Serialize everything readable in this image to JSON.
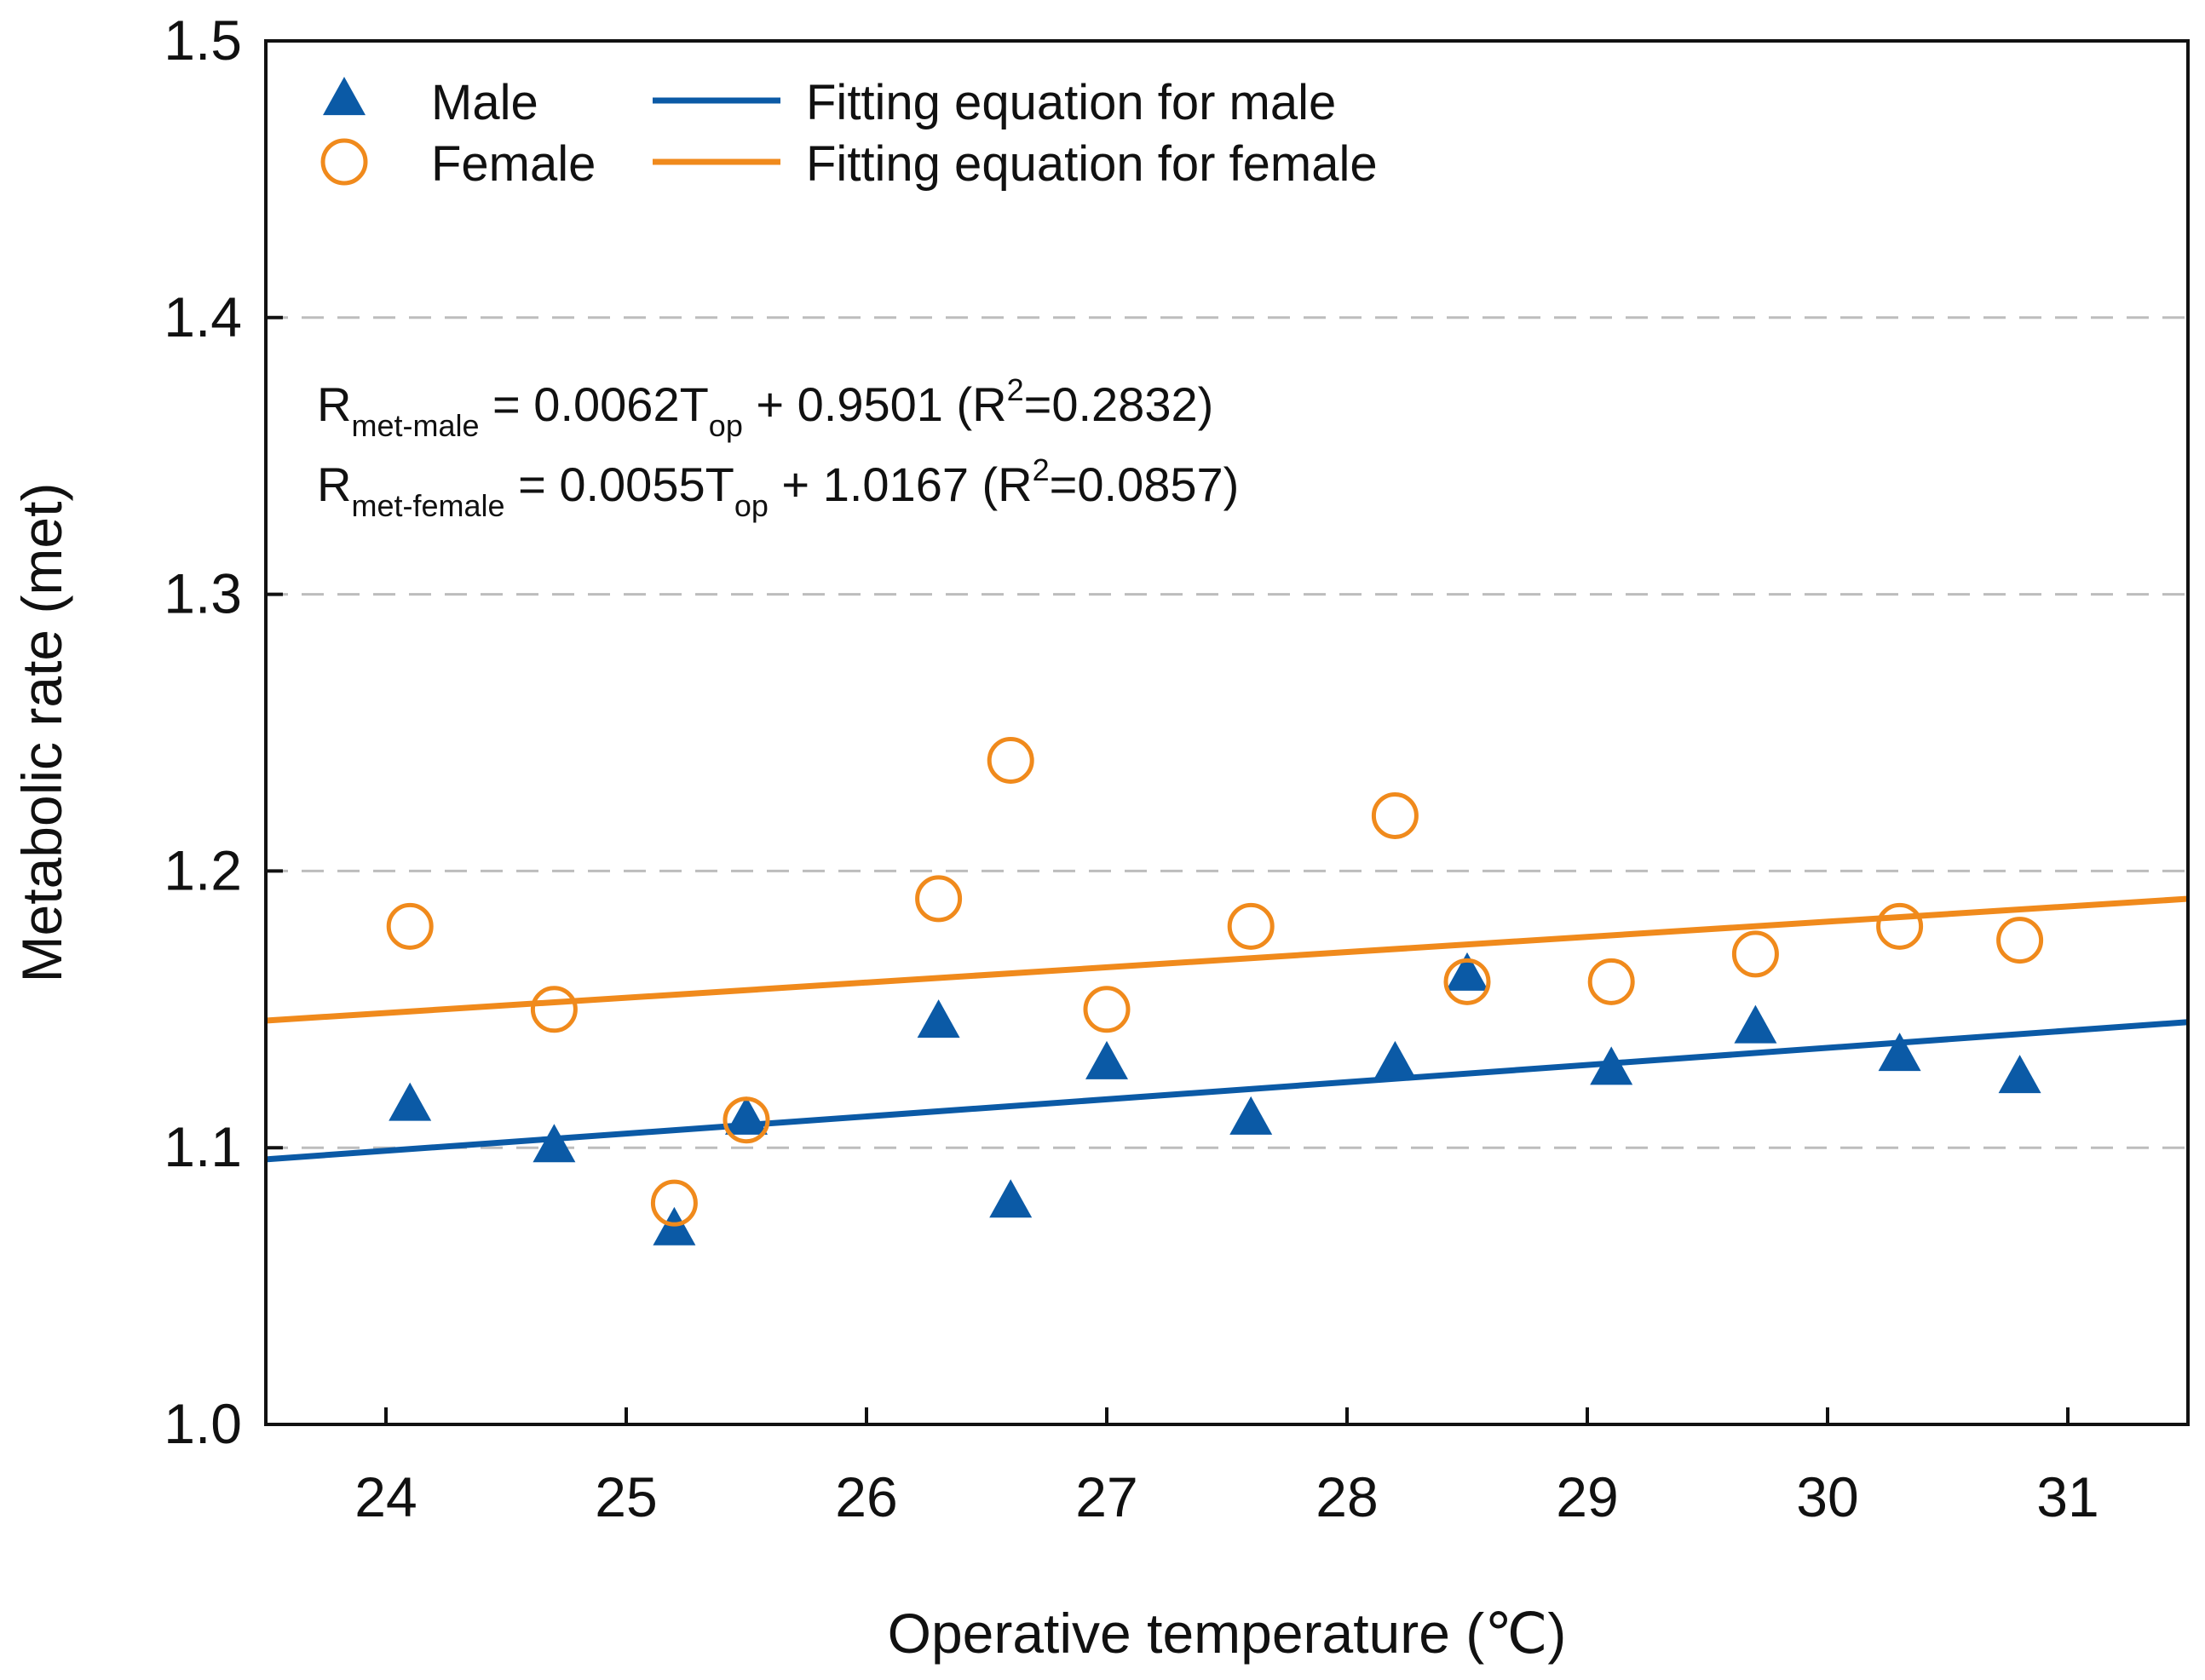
{
  "chart_data": {
    "type": "scatter",
    "xlabel": "Operative temperature (℃)",
    "ylabel": "Metabolic rate (met)",
    "xlim": [
      23.5,
      31.5
    ],
    "ylim": [
      1.0,
      1.5
    ],
    "xticks": [
      24,
      25,
      26,
      27,
      28,
      29,
      30,
      31
    ],
    "yticks": [
      1.0,
      1.1,
      1.2,
      1.3,
      1.4,
      1.5
    ],
    "ytick_labels": [
      "1.0",
      "1.1",
      "1.2",
      "1.3",
      "1.4",
      "1.5"
    ],
    "grid": "horizontal-dashed",
    "legend": {
      "placement": "top-left",
      "items": [
        {
          "label": "Male",
          "marker": "triangle",
          "color": "#0b5aa6"
        },
        {
          "label": "Female",
          "marker": "open-circle",
          "color": "#f08a1c"
        },
        {
          "label": "Fitting equation for male",
          "marker": "line",
          "color": "#0b5aa6"
        },
        {
          "label": "Fitting equation for female",
          "marker": "line",
          "color": "#f08a1c"
        }
      ]
    },
    "series": [
      {
        "name": "Male",
        "marker": "triangle",
        "color": "#0b5aa6",
        "points": [
          [
            24.1,
            1.115
          ],
          [
            24.7,
            1.1
          ],
          [
            25.2,
            1.07
          ],
          [
            25.5,
            1.11
          ],
          [
            26.3,
            1.145
          ],
          [
            26.6,
            1.08
          ],
          [
            27.0,
            1.13
          ],
          [
            27.6,
            1.11
          ],
          [
            28.2,
            1.13
          ],
          [
            28.5,
            1.162
          ],
          [
            29.1,
            1.128
          ],
          [
            29.7,
            1.143
          ],
          [
            30.3,
            1.133
          ],
          [
            30.8,
            1.125
          ]
        ]
      },
      {
        "name": "Female",
        "marker": "open-circle",
        "color": "#f08a1c",
        "points": [
          [
            24.1,
            1.18
          ],
          [
            24.7,
            1.15
          ],
          [
            25.2,
            1.08
          ],
          [
            25.5,
            1.11
          ],
          [
            26.3,
            1.19
          ],
          [
            26.6,
            1.24
          ],
          [
            27.0,
            1.15
          ],
          [
            27.6,
            1.18
          ],
          [
            28.2,
            1.22
          ],
          [
            28.5,
            1.16
          ],
          [
            29.1,
            1.16
          ],
          [
            29.7,
            1.17
          ],
          [
            30.3,
            1.18
          ],
          [
            30.8,
            1.175
          ]
        ]
      }
    ],
    "fits": [
      {
        "name": "Fitting equation for male",
        "color": "#0b5aa6",
        "slope": 0.0062,
        "intercept": 0.9501
      },
      {
        "name": "Fitting equation for female",
        "color": "#f08a1c",
        "slope": 0.0055,
        "intercept": 1.0167
      }
    ],
    "equations": [
      {
        "R": "R",
        "sub": "met-male",
        "mid": " = 0.0062T",
        "top_sub": "op",
        "rest": " + 0.9501 (R",
        "sup": "2",
        "end": "=0.2832)"
      },
      {
        "R": "R",
        "sub": "met-female",
        "mid": " = 0.0055T",
        "top_sub": "op",
        "rest": " + 1.0167 (R",
        "sup": "2",
        "end": "=0.0857)"
      }
    ]
  }
}
